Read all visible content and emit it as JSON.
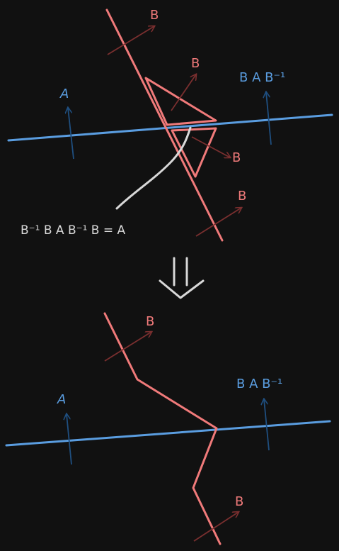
{
  "colors": {
    "background": "#111111",
    "b_line": "#f07a7a",
    "b_arrow": "#7a2f2f",
    "a_line": "#5a9de0",
    "a_arrow": "#1f4f80",
    "annotation": "#d8d8d8"
  },
  "top_panel": {
    "label_b_1": "B",
    "label_b_2": "B",
    "label_b_3": "B",
    "label_b_4": "B",
    "label_a": "A",
    "label_conj": "B A B⁻¹",
    "equation": "B⁻¹ B A B⁻¹ B = A"
  },
  "transition_icon": "double-down-arrow-icon",
  "bottom_panel": {
    "label_b_1": "B",
    "label_b_2": "B",
    "label_a": "A",
    "label_conj": "B A B⁻¹"
  }
}
